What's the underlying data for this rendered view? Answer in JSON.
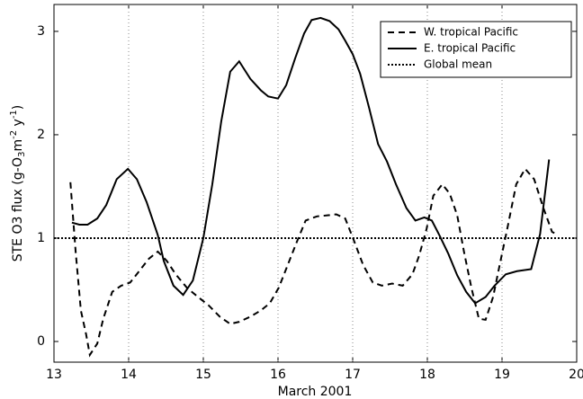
{
  "chart_data": {
    "type": "line",
    "xlabel": "March 2001",
    "ylabel": [
      {
        "text": "STE O3 flux  (g-O",
        "script": "base"
      },
      {
        "text": "3",
        "script": "sub"
      },
      {
        "text": "m",
        "script": "base"
      },
      {
        "text": "-2",
        "script": "super"
      },
      {
        "text": " y",
        "script": "base"
      },
      {
        "text": "-1",
        "script": "super"
      },
      {
        "text": ")",
        "script": "base"
      }
    ],
    "xlim": [
      13,
      20
    ],
    "xticks": [
      13,
      14,
      15,
      16,
      17,
      18,
      19,
      20
    ],
    "ylim": [
      -0.2,
      3.26
    ],
    "yticks": [
      0,
      1,
      2,
      3
    ],
    "grid": true,
    "legend": "upper right",
    "series": [
      {
        "name": "W. tropical Pacific",
        "color": "#000000",
        "dash": "dashed",
        "x": [
          13.22,
          13.29,
          13.36,
          13.43,
          13.48,
          13.58,
          13.66,
          13.78,
          13.9,
          14.02,
          14.14,
          14.27,
          14.39,
          14.51,
          14.63,
          14.78,
          14.93,
          15.07,
          15.22,
          15.36,
          15.48,
          15.63,
          15.77,
          15.89,
          16.01,
          16.13,
          16.25,
          16.37,
          16.52,
          16.66,
          16.78,
          16.9,
          17.02,
          17.14,
          17.27,
          17.39,
          17.53,
          17.67,
          17.8,
          17.89,
          17.99,
          18.08,
          18.2,
          18.3,
          18.4,
          18.49,
          18.59,
          18.69,
          18.78,
          18.88,
          18.98,
          19.07,
          19.19,
          19.31,
          19.43,
          19.55,
          19.67,
          19.75
        ],
        "values": [
          1.54,
          0.87,
          0.3,
          0.07,
          -0.13,
          -0.02,
          0.22,
          0.48,
          0.54,
          0.57,
          0.68,
          0.8,
          0.87,
          0.78,
          0.65,
          0.52,
          0.43,
          0.35,
          0.24,
          0.17,
          0.19,
          0.24,
          0.3,
          0.37,
          0.52,
          0.74,
          0.96,
          1.17,
          1.21,
          1.22,
          1.23,
          1.19,
          0.97,
          0.74,
          0.57,
          0.54,
          0.56,
          0.54,
          0.65,
          0.83,
          1.09,
          1.41,
          1.52,
          1.43,
          1.22,
          0.87,
          0.52,
          0.22,
          0.21,
          0.43,
          0.78,
          1.09,
          1.52,
          1.67,
          1.57,
          1.3,
          1.06,
          1.03
        ]
      },
      {
        "name": "E. tropical Pacific",
        "color": "#000000",
        "dash": "solid",
        "x": [
          13.24,
          13.34,
          13.45,
          13.58,
          13.7,
          13.84,
          13.99,
          14.11,
          14.24,
          14.39,
          14.47,
          14.6,
          14.73,
          14.86,
          15.0,
          15.12,
          15.24,
          15.36,
          15.48,
          15.63,
          15.77,
          15.87,
          16.0,
          16.11,
          16.23,
          16.35,
          16.45,
          16.57,
          16.69,
          16.81,
          16.9,
          17.0,
          17.1,
          17.22,
          17.34,
          17.46,
          17.58,
          17.72,
          17.84,
          17.96,
          18.06,
          18.16,
          18.28,
          18.4,
          18.52,
          18.64,
          18.78,
          18.9,
          19.05,
          19.2,
          19.39,
          19.51,
          19.63
        ],
        "values": [
          1.15,
          1.13,
          1.13,
          1.19,
          1.32,
          1.57,
          1.67,
          1.57,
          1.35,
          1.03,
          0.78,
          0.54,
          0.45,
          0.59,
          1.0,
          1.52,
          2.13,
          2.61,
          2.71,
          2.54,
          2.43,
          2.37,
          2.35,
          2.48,
          2.74,
          2.98,
          3.11,
          3.13,
          3.1,
          3.02,
          2.91,
          2.78,
          2.59,
          2.26,
          1.91,
          1.74,
          1.52,
          1.29,
          1.17,
          1.2,
          1.17,
          1.03,
          0.85,
          0.64,
          0.48,
          0.37,
          0.43,
          0.54,
          0.65,
          0.68,
          0.7,
          1.04,
          1.76
        ]
      },
      {
        "name": "Global mean",
        "color": "#000000",
        "dash": "dotted",
        "x": [
          13,
          20
        ],
        "values": [
          1,
          1
        ]
      }
    ]
  }
}
